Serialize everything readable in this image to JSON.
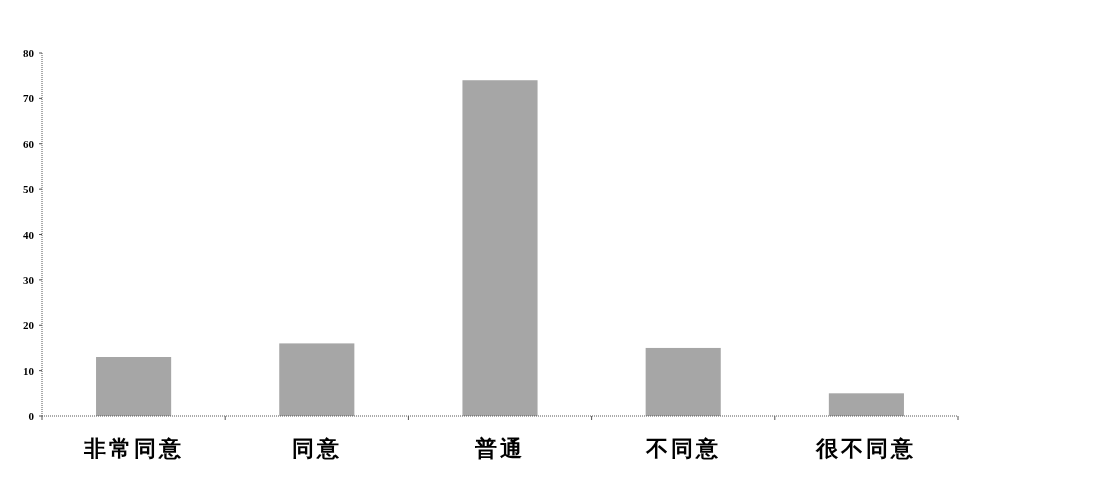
{
  "chart_data": {
    "type": "bar",
    "categories": [
      "非常同意",
      "同意",
      "普通",
      "不同意",
      "很不同意"
    ],
    "values": [
      13,
      16,
      74,
      15,
      5
    ],
    "color": "#a6a6a6",
    "ylim": [
      0,
      80
    ],
    "yticks": [
      0,
      10,
      20,
      30,
      40,
      50,
      60,
      70,
      80
    ],
    "grid": false
  }
}
